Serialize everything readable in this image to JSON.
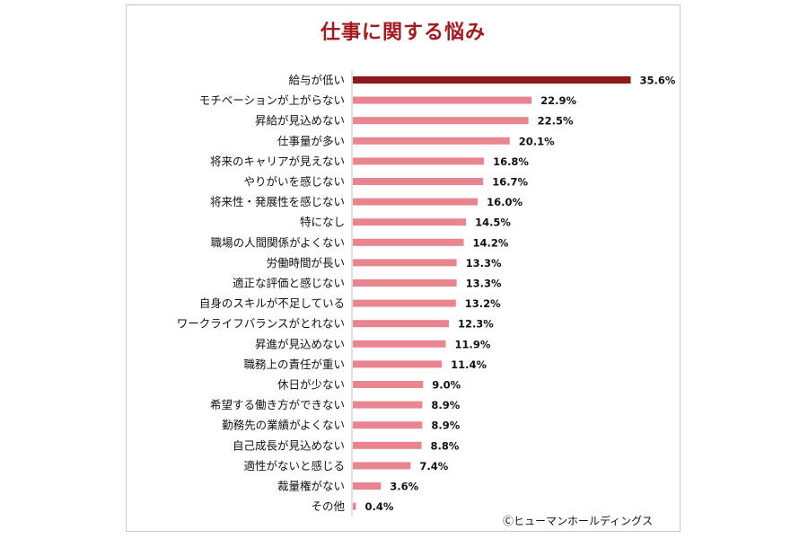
{
  "chart_data": {
    "type": "bar",
    "orientation": "horizontal",
    "title": "仕事に関する悩み",
    "categories": [
      "給与が低い",
      "モチベーションが上がらない",
      "昇給が見込めない",
      "仕事量が多い",
      "将来のキャリアが見えない",
      "やりがいを感じない",
      "将来性・発展性を感じない",
      "特になし",
      "職場の人間関係がよくない",
      "労働時間が長い",
      "適正な評価と感じない",
      "自身のスキルが不足している",
      "ワークライフバランスがとれない",
      "昇進が見込めない",
      "職務上の責任が重い",
      "休日が少ない",
      "希望する働き方ができない",
      "勤務先の業績がよくない",
      "自己成長が見込めない",
      "適性がないと感じる",
      "裁量権がない",
      "その他"
    ],
    "values": [
      35.6,
      22.9,
      22.5,
      20.1,
      16.8,
      16.7,
      16.0,
      14.5,
      14.2,
      13.3,
      13.3,
      13.2,
      12.3,
      11.9,
      11.4,
      9.0,
      8.9,
      8.9,
      8.8,
      7.4,
      3.6,
      0.4
    ],
    "value_labels": [
      "35.6%",
      "22.9%",
      "22.5%",
      "20.1%",
      "16.8%",
      "16.7%",
      "16.0%",
      "14.5%",
      "14.2%",
      "13.3%",
      "13.3%",
      "13.2%",
      "12.3%",
      "11.9%",
      "11.4%",
      "9.0%",
      "8.9%",
      "8.9%",
      "8.8%",
      "7.4%",
      "3.6%",
      "0.4%"
    ],
    "highlight_index": 0,
    "highlight_color": "#8b1a1a",
    "bar_color": "#e8858f",
    "xlim": [
      0,
      36
    ],
    "xlabel": "",
    "ylabel": "",
    "grid": false,
    "legend": "none"
  },
  "credit": "Ⓒヒューマンホールディングス"
}
